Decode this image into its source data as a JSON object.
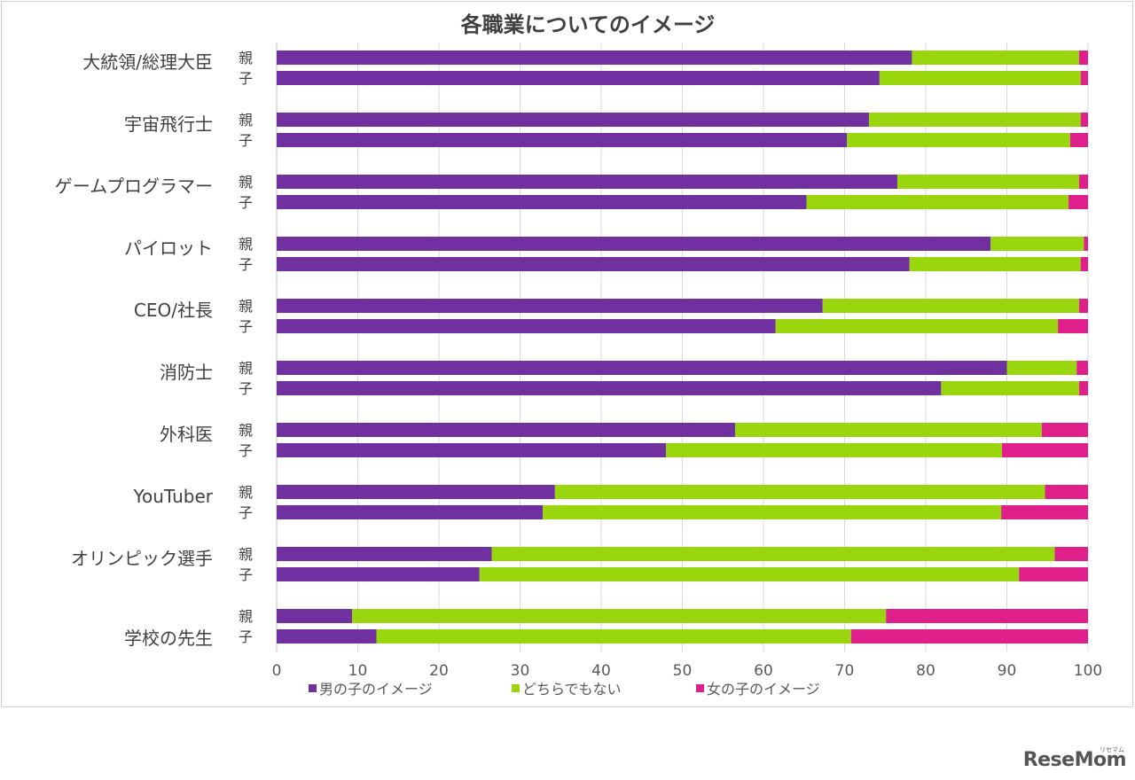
{
  "chart_data": {
    "type": "bar",
    "orientation": "horizontal",
    "stacked": true,
    "title": "各職業についてのイメージ",
    "categories": [
      "大統領/総理大臣",
      "宇宙飛行士",
      "ゲームプログラマー",
      "パイロット",
      "CEO/社長",
      "消防士",
      "外科医",
      "YouTuber",
      "オリンピック選手",
      "学校の先生"
    ],
    "subgroups": [
      "親",
      "子"
    ],
    "series": [
      {
        "name": "男の子のイメージ",
        "color": "#7030a0",
        "values": [
          [
            78.3,
            74.3
          ],
          [
            73.0,
            70.3
          ],
          [
            76.5,
            65.3
          ],
          [
            88.0,
            78.0
          ],
          [
            67.3,
            61.5
          ],
          [
            90.0,
            81.9
          ],
          [
            56.5,
            48.0
          ],
          [
            34.3,
            32.8
          ],
          [
            26.5,
            25.0
          ],
          [
            9.3,
            12.3
          ]
        ]
      },
      {
        "name": "どちらでもない",
        "color": "#99d60e",
        "values": [
          [
            20.6,
            24.8
          ],
          [
            26.1,
            27.5
          ],
          [
            22.4,
            32.3
          ],
          [
            11.5,
            21.1
          ],
          [
            31.6,
            34.8
          ],
          [
            8.6,
            17.0
          ],
          [
            37.8,
            41.4
          ],
          [
            60.4,
            56.5
          ],
          [
            69.4,
            66.5
          ],
          [
            65.8,
            58.5
          ]
        ]
      },
      {
        "name": "女の子のイメージ",
        "color": "#e0208a",
        "values": [
          [
            1.1,
            0.9
          ],
          [
            0.9,
            2.2
          ],
          [
            1.1,
            2.4
          ],
          [
            0.5,
            0.9
          ],
          [
            1.1,
            3.7
          ],
          [
            1.4,
            1.1
          ],
          [
            5.7,
            10.6
          ],
          [
            5.3,
            10.7
          ],
          [
            4.1,
            8.5
          ],
          [
            24.9,
            29.2
          ]
        ]
      }
    ],
    "xlim": [
      0,
      100
    ],
    "xticks": [
      0,
      10,
      20,
      30,
      40,
      50,
      60,
      70,
      80,
      90,
      100
    ],
    "grid": true,
    "legend": "bottom"
  },
  "watermark": {
    "text": "ReseMom",
    "kana": "リセマム"
  }
}
